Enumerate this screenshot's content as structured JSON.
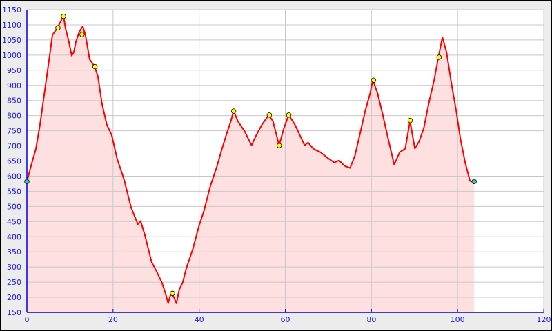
{
  "chart_data": {
    "type": "area",
    "title": "",
    "xlabel": "",
    "ylabel": "",
    "xlim": [
      0,
      120
    ],
    "ylim": [
      150,
      1150
    ],
    "x_ticks": [
      0,
      20,
      40,
      60,
      80,
      100,
      120
    ],
    "y_ticks": [
      150,
      200,
      250,
      300,
      350,
      400,
      450,
      500,
      550,
      600,
      650,
      700,
      750,
      800,
      850,
      900,
      950,
      1000,
      1050,
      1100,
      1150
    ],
    "grid": true,
    "colors": {
      "line": "#ff0000",
      "fill": "#ffe0e0",
      "grid": "#c8c8c8",
      "axis": "#0000e0",
      "marker": "#ffff00",
      "endpoint": "#33cccc"
    },
    "series": [
      {
        "x": [
          0,
          0.96,
          2.08,
          3.04,
          4.16,
          5.28,
          5.92,
          7.04,
          7.84,
          8.48,
          8.96,
          9.76,
          10.4,
          10.88,
          11.36,
          12.16,
          12.96,
          13.6,
          14.56,
          15.68,
          16.48,
          17.44,
          18.56,
          19.68,
          20.96,
          22.56,
          24.16,
          25.76,
          26.4,
          27.36,
          28.96,
          30.24,
          31.36,
          32.16,
          32.8,
          33.44,
          34.08,
          34.72,
          35.36,
          36.16,
          36.96,
          38.56,
          39.84,
          41.12,
          42.56,
          44.16,
          45.28,
          46.56,
          47.36,
          48,
          48.96,
          50.56,
          52.16,
          53.28,
          54.56,
          56.16,
          57.12,
          58.56,
          59.68,
          60.8,
          62.24,
          63.36,
          64.48,
          65.28,
          66.56,
          68.16,
          69.76,
          71.36,
          72.48,
          73.76,
          75.04,
          76.16,
          77.28,
          78.56,
          79.68,
          80.32,
          81.44,
          82.56,
          83.68,
          85.28,
          86.56,
          87.84,
          88.96,
          90.08,
          91.04,
          92.16,
          93.28,
          94.56,
          95.52,
          96.48,
          97.44,
          98.56,
          99.68,
          100.64,
          101.76,
          102.88,
          103.84
        ],
        "y": [
          582,
          634,
          690,
          770,
          884,
          998,
          1066,
          1089,
          1111,
          1130,
          1089,
          1043,
          998,
          1009,
          1043,
          1077,
          1095,
          1066,
          986,
          963,
          930,
          839,
          770,
          736,
          657,
          589,
          498,
          441,
          452,
          407,
          316,
          282,
          248,
          214,
          180,
          214,
          202,
          180,
          225,
          248,
          293,
          361,
          430,
          486,
          566,
          634,
          690,
          748,
          782,
          816,
          782,
          748,
          702,
          736,
          770,
          802,
          782,
          702,
          759,
          802,
          770,
          736,
          702,
          711,
          690,
          679,
          661,
          645,
          652,
          634,
          627,
          668,
          736,
          816,
          873,
          918,
          873,
          807,
          736,
          638,
          679,
          691,
          782,
          691,
          714,
          759,
          839,
          918,
          991,
          1059,
          1009,
          907,
          816,
          725,
          645,
          584,
          582
        ]
      }
    ],
    "markers": [
      {
        "x": 7.2,
        "y": 1090
      },
      {
        "x": 8.5,
        "y": 1128
      },
      {
        "x": 12.8,
        "y": 1068
      },
      {
        "x": 15.8,
        "y": 962
      },
      {
        "x": 33.8,
        "y": 213
      },
      {
        "x": 48,
        "y": 815
      },
      {
        "x": 56.3,
        "y": 802
      },
      {
        "x": 58.6,
        "y": 701
      },
      {
        "x": 60.8,
        "y": 802
      },
      {
        "x": 80.5,
        "y": 917
      },
      {
        "x": 89,
        "y": 784
      },
      {
        "x": 95.7,
        "y": 993
      }
    ],
    "endpoints": [
      {
        "x": 0,
        "y": 582
      },
      {
        "x": 103.84,
        "y": 582
      }
    ]
  }
}
